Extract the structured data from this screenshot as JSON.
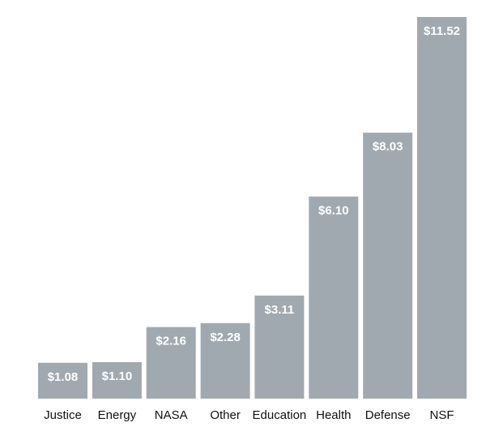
{
  "chart_data": {
    "type": "bar",
    "categories": [
      "Justice",
      "Energy",
      "NASA",
      "Other",
      "Education",
      "Health",
      "Defense",
      "NSF"
    ],
    "values": [
      1.08,
      1.1,
      2.16,
      2.28,
      3.11,
      6.1,
      8.03,
      11.52
    ],
    "value_labels": [
      "$1.08",
      "$1.10",
      "$2.16",
      "$2.28",
      "$3.11",
      "$6.10",
      "$8.03",
      "$11.52"
    ],
    "title": "",
    "xlabel": "",
    "ylabel": "",
    "ylim": [
      0,
      11.52
    ],
    "grid": false,
    "legend": "none",
    "colors": {
      "bar": "#a0a9af",
      "label_inside": "#ffffff",
      "label_above": "#111111",
      "axis_text": "#111111"
    }
  }
}
